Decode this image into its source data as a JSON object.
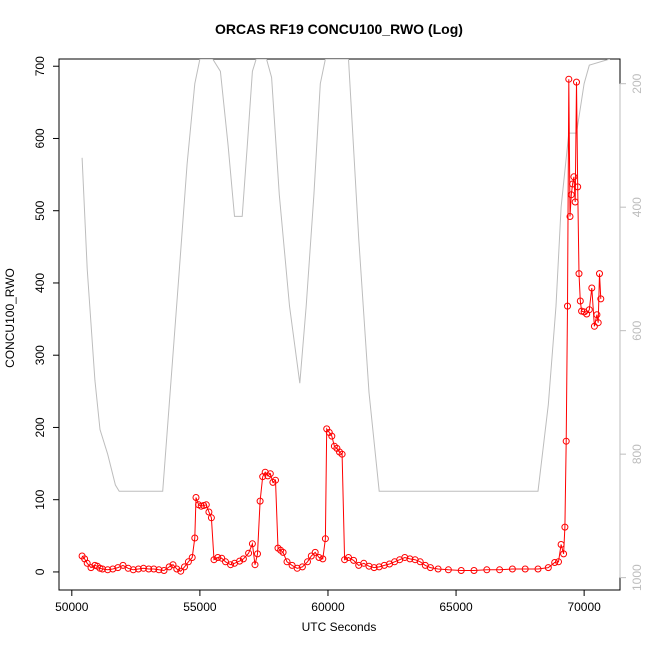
{
  "chart_data": {
    "type": "line",
    "title": "ORCAS RF19 CONCU100_RWO (Log)",
    "xlabel": "UTC Seconds",
    "ylabel": "CONCU100_RWO",
    "xlim": [
      49500,
      71400
    ],
    "ylim": [
      -25,
      710
    ],
    "x_ticks": [
      50000,
      55000,
      60000,
      65000,
      70000
    ],
    "y_ticks": [
      0,
      100,
      200,
      300,
      400,
      500,
      600,
      700
    ],
    "y2_reversed": true,
    "y2_ticks": [
      200,
      400,
      600,
      800,
      1000
    ],
    "y2_lim": [
      1020,
      160
    ],
    "grid": false,
    "legend": "none",
    "series": [
      {
        "role": "primary",
        "color": "#ff0000",
        "marker": "circle-open",
        "points": [
          [
            50400,
            22
          ],
          [
            50500,
            18
          ],
          [
            50600,
            12
          ],
          [
            50750,
            6
          ],
          [
            50900,
            9
          ],
          [
            51000,
            8
          ],
          [
            51100,
            5
          ],
          [
            51200,
            4
          ],
          [
            51400,
            3
          ],
          [
            51600,
            4
          ],
          [
            51800,
            6
          ],
          [
            52000,
            9
          ],
          [
            52200,
            5
          ],
          [
            52400,
            3
          ],
          [
            52600,
            4
          ],
          [
            52800,
            5
          ],
          [
            53000,
            4
          ],
          [
            53200,
            4
          ],
          [
            53400,
            3
          ],
          [
            53600,
            2
          ],
          [
            53800,
            7
          ],
          [
            53950,
            10
          ],
          [
            54100,
            4
          ],
          [
            54250,
            1
          ],
          [
            54400,
            7
          ],
          [
            54550,
            14
          ],
          [
            54700,
            20
          ],
          [
            54800,
            47
          ],
          [
            54850,
            103
          ],
          [
            54950,
            93
          ],
          [
            55050,
            91
          ],
          [
            55150,
            92
          ],
          [
            55250,
            93
          ],
          [
            55350,
            83
          ],
          [
            55450,
            75
          ],
          [
            55550,
            17
          ],
          [
            55700,
            20
          ],
          [
            55850,
            19
          ],
          [
            56000,
            14
          ],
          [
            56200,
            10
          ],
          [
            56350,
            12
          ],
          [
            56550,
            15
          ],
          [
            56700,
            18
          ],
          [
            56900,
            26
          ],
          [
            57050,
            39
          ],
          [
            57150,
            10
          ],
          [
            57250,
            25
          ],
          [
            57350,
            98
          ],
          [
            57450,
            132
          ],
          [
            57550,
            138
          ],
          [
            57650,
            133
          ],
          [
            57750,
            136
          ],
          [
            57850,
            124
          ],
          [
            57950,
            127
          ],
          [
            58050,
            33
          ],
          [
            58150,
            30
          ],
          [
            58250,
            27
          ],
          [
            58400,
            14
          ],
          [
            58600,
            9
          ],
          [
            58800,
            5
          ],
          [
            59000,
            7
          ],
          [
            59200,
            14
          ],
          [
            59350,
            22
          ],
          [
            59500,
            27
          ],
          [
            59650,
            20
          ],
          [
            59800,
            18
          ],
          [
            59900,
            46
          ],
          [
            59950,
            198
          ],
          [
            60050,
            193
          ],
          [
            60150,
            188
          ],
          [
            60250,
            174
          ],
          [
            60350,
            171
          ],
          [
            60450,
            166
          ],
          [
            60550,
            163
          ],
          [
            60650,
            17
          ],
          [
            60800,
            20
          ],
          [
            61000,
            16
          ],
          [
            61200,
            9
          ],
          [
            61400,
            12
          ],
          [
            61600,
            8
          ],
          [
            61800,
            6
          ],
          [
            62000,
            7
          ],
          [
            62200,
            9
          ],
          [
            62400,
            11
          ],
          [
            62600,
            14
          ],
          [
            62800,
            17
          ],
          [
            63000,
            20
          ],
          [
            63200,
            18
          ],
          [
            63400,
            17
          ],
          [
            63600,
            14
          ],
          [
            63800,
            9
          ],
          [
            64000,
            6
          ],
          [
            64300,
            4
          ],
          [
            64700,
            3
          ],
          [
            65200,
            2
          ],
          [
            65700,
            2
          ],
          [
            66200,
            3
          ],
          [
            66700,
            3
          ],
          [
            67200,
            4
          ],
          [
            67700,
            4
          ],
          [
            68200,
            4
          ],
          [
            68600,
            6
          ],
          [
            68850,
            13
          ],
          [
            69000,
            14
          ],
          [
            69100,
            38
          ],
          [
            69200,
            25
          ],
          [
            69250,
            62
          ],
          [
            69300,
            181
          ],
          [
            69350,
            368
          ],
          [
            69400,
            682
          ],
          [
            69450,
            492
          ],
          [
            69500,
            522
          ],
          [
            69550,
            537
          ],
          [
            69600,
            547
          ],
          [
            69650,
            512
          ],
          [
            69700,
            678
          ],
          [
            69750,
            533
          ],
          [
            69800,
            413
          ],
          [
            69850,
            375
          ],
          [
            69900,
            361
          ],
          [
            70000,
            360
          ],
          [
            70100,
            357
          ],
          [
            70200,
            363
          ],
          [
            70300,
            393
          ],
          [
            70400,
            340
          ],
          [
            70500,
            356
          ],
          [
            70550,
            345
          ],
          [
            70600,
            413
          ],
          [
            70650,
            378
          ]
        ]
      },
      {
        "role": "secondary",
        "color": "#bdbdbd",
        "marker": "none",
        "axis": "right",
        "points": [
          [
            50400,
            320
          ],
          [
            50600,
            500
          ],
          [
            50900,
            680
          ],
          [
            51100,
            760
          ],
          [
            51400,
            800
          ],
          [
            51700,
            850
          ],
          [
            51850,
            860
          ],
          [
            52500,
            860
          ],
          [
            53300,
            860
          ],
          [
            53550,
            860
          ],
          [
            53800,
            720
          ],
          [
            54200,
            500
          ],
          [
            54500,
            330
          ],
          [
            54800,
            200
          ],
          [
            55000,
            160
          ],
          [
            55500,
            160
          ],
          [
            55800,
            180
          ],
          [
            56100,
            300
          ],
          [
            56350,
            415
          ],
          [
            56650,
            415
          ],
          [
            56850,
            300
          ],
          [
            57050,
            180
          ],
          [
            57200,
            160
          ],
          [
            57600,
            160
          ],
          [
            57800,
            190
          ],
          [
            58100,
            380
          ],
          [
            58500,
            560
          ],
          [
            58900,
            685
          ],
          [
            59150,
            560
          ],
          [
            59450,
            380
          ],
          [
            59700,
            200
          ],
          [
            59900,
            160
          ],
          [
            60800,
            160
          ],
          [
            61200,
            450
          ],
          [
            61600,
            700
          ],
          [
            62000,
            860
          ],
          [
            62500,
            860
          ],
          [
            65000,
            860
          ],
          [
            68200,
            860
          ],
          [
            68600,
            720
          ],
          [
            68900,
            560
          ],
          [
            69100,
            400
          ],
          [
            69400,
            280
          ],
          [
            69700,
            280
          ],
          [
            70000,
            200
          ],
          [
            70200,
            170
          ],
          [
            71000,
            160
          ]
        ]
      }
    ]
  }
}
